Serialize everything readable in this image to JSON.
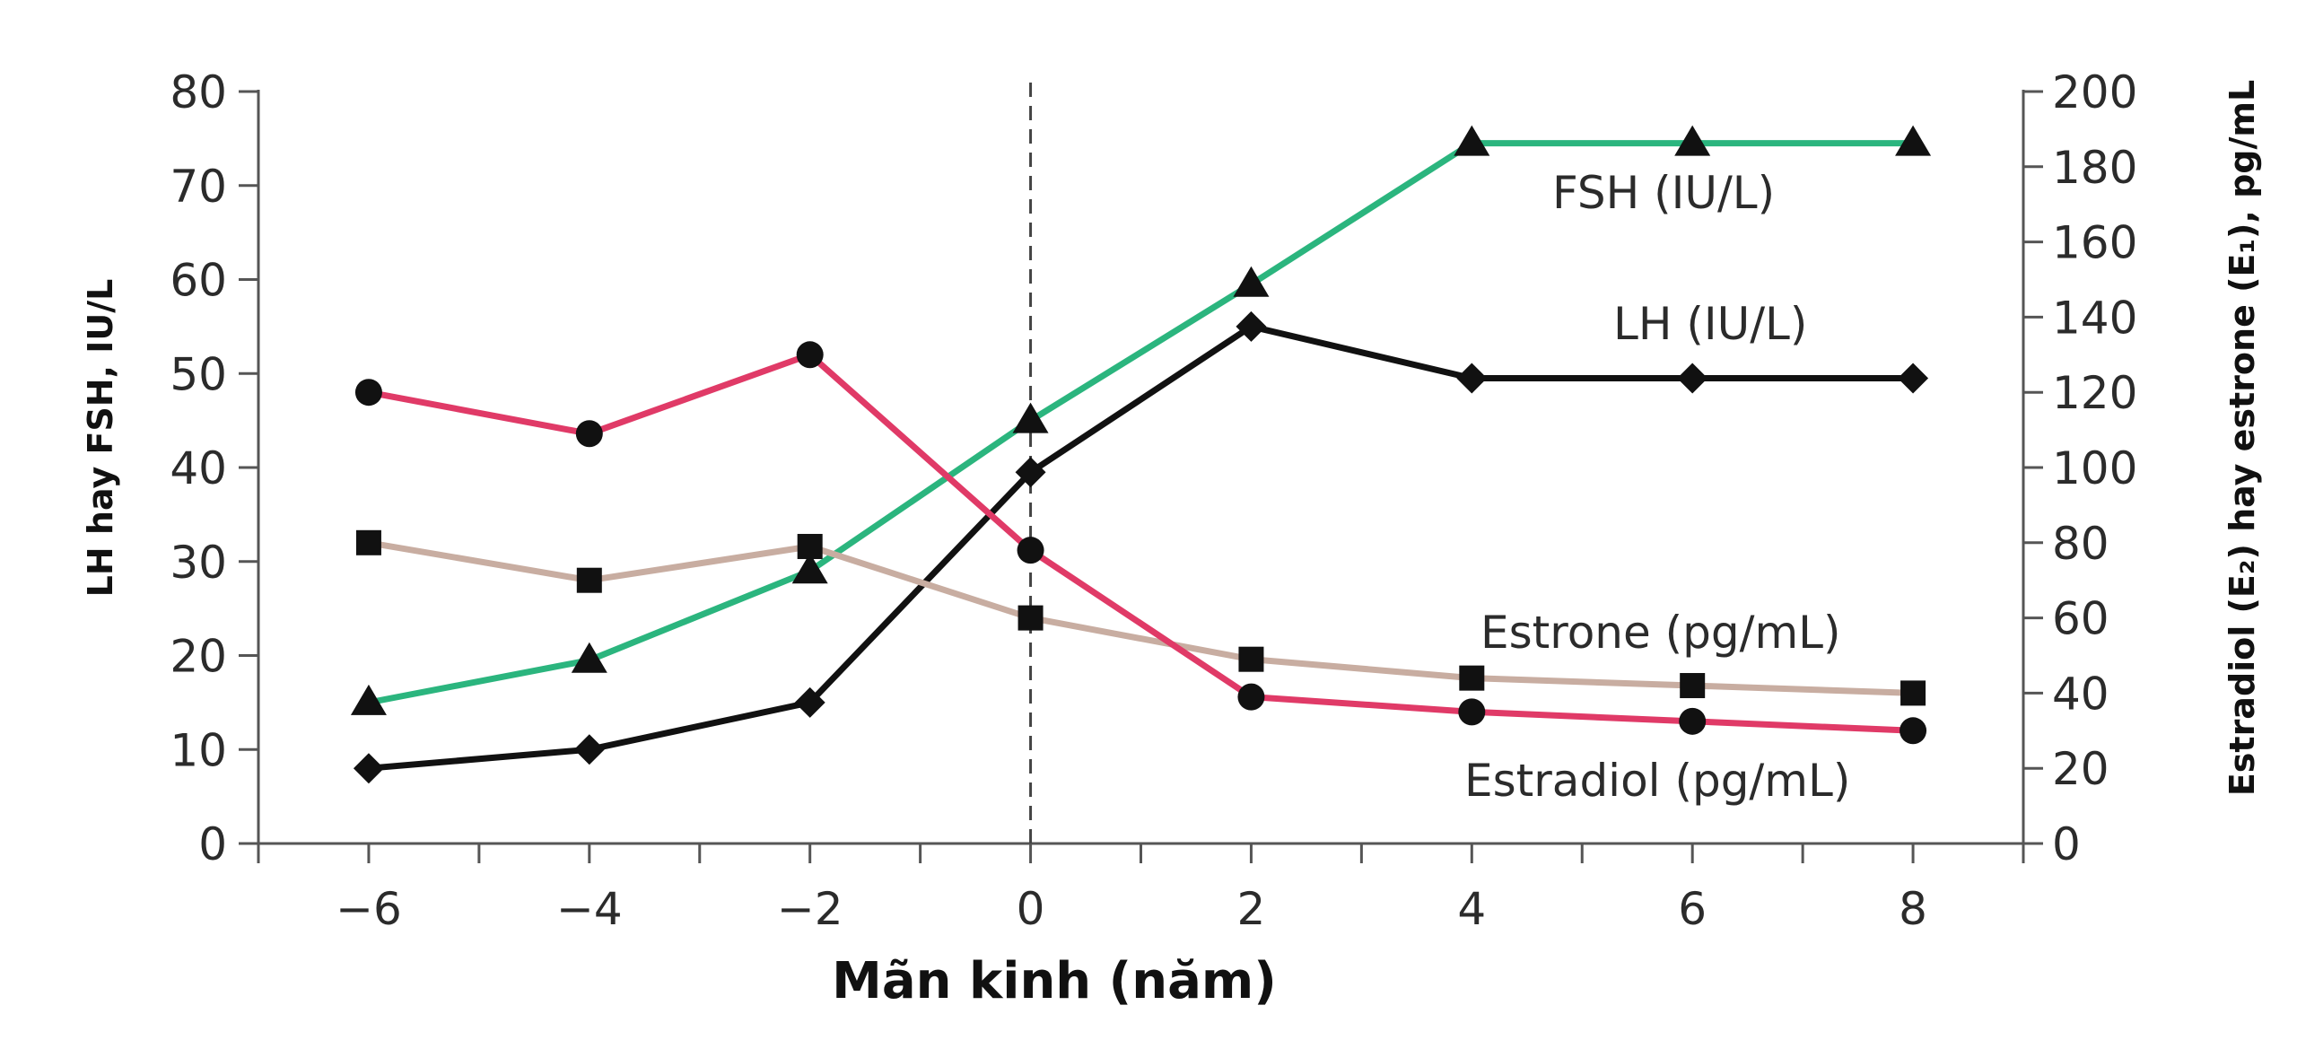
{
  "chart_data": {
    "type": "line",
    "title": "",
    "xlabel": "Mãn kinh (năm)",
    "ylabel_left": "LH hay FSH, IU/L",
    "ylabel_right": "Estradiol (E₂) hay estrone (E₁), pg/mL",
    "x": [
      -6,
      -4,
      -2,
      0,
      2,
      4,
      6,
      8
    ],
    "x_tick_labels": [
      "−6",
      "−4",
      "−2",
      "0",
      "2",
      "4",
      "6",
      "8"
    ],
    "xlim": [
      -7,
      9
    ],
    "ylim_left": [
      0,
      80
    ],
    "ylim_right": [
      0,
      200
    ],
    "y_ticks_left": [
      0,
      10,
      20,
      30,
      40,
      50,
      60,
      70,
      80
    ],
    "y_ticks_right": [
      0,
      20,
      40,
      60,
      80,
      100,
      120,
      140,
      160,
      180,
      200
    ],
    "menopause_line_x": 0,
    "grid": false,
    "series": [
      {
        "name": "FSH (IU/L)",
        "axis": "left",
        "color": "#2bb57e",
        "marker": "triangle",
        "values": [
          15,
          19.5,
          29,
          45,
          59.5,
          74.5,
          74.5,
          74.5
        ]
      },
      {
        "name": "LH (IU/L)",
        "axis": "left",
        "color": "#111111",
        "marker": "diamond",
        "values": [
          8,
          10,
          15,
          39.5,
          55,
          49.5,
          49.5,
          49.5
        ]
      },
      {
        "name": "Estrone (pg/mL)",
        "axis": "right",
        "color": "#c8ada1",
        "marker": "square",
        "values": [
          80,
          70,
          79,
          60,
          49,
          44,
          42,
          40
        ]
      },
      {
        "name": "Estradiol (pg/mL)",
        "axis": "right",
        "color": "#e03a67",
        "marker": "circle",
        "values": [
          120,
          109,
          130,
          78,
          39,
          35,
          32.5,
          30
        ]
      }
    ]
  }
}
